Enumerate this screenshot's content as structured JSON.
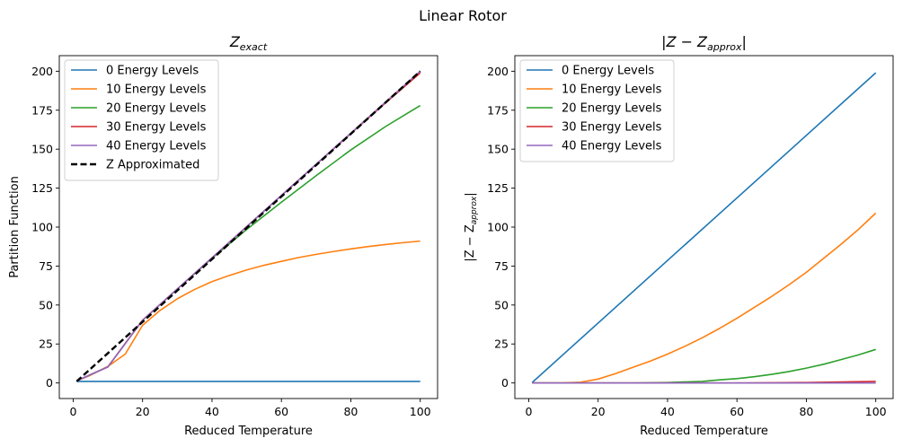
{
  "suptitle": "Linear Rotor",
  "chart_data": [
    {
      "type": "line",
      "title": "Z_exact",
      "title_main": "Z",
      "title_sub": "exact",
      "xlabel": "Reduced Temperature",
      "ylabel": "Partition Function",
      "xlim": [
        -4,
        105
      ],
      "ylim": [
        -10,
        210
      ],
      "xticks": [
        0,
        20,
        40,
        60,
        80,
        100
      ],
      "yticks": [
        0,
        25,
        50,
        75,
        100,
        125,
        150,
        175,
        200
      ],
      "grid": false,
      "legend_position": "upper left",
      "series": [
        {
          "name": "0 Energy Levels",
          "color": "#1f77b4",
          "dashed": false,
          "x": [
            1,
            10,
            20,
            30,
            40,
            50,
            60,
            70,
            80,
            90,
            100
          ],
          "y": [
            1,
            1,
            1,
            1,
            1,
            1,
            1,
            1,
            1,
            1,
            1
          ]
        },
        {
          "name": "10 Energy Levels",
          "color": "#ff7f0e",
          "dashed": false,
          "x": [
            1,
            5,
            10,
            15,
            20,
            25,
            30,
            35,
            40,
            45,
            50,
            55,
            60,
            65,
            70,
            75,
            80,
            85,
            90,
            95,
            100
          ],
          "y": [
            1.3,
            5,
            10.6,
            18.5,
            37.0,
            46.5,
            54.0,
            60.0,
            65.0,
            69.0,
            72.5,
            75.5,
            78.0,
            80.5,
            82.5,
            84.3,
            86.0,
            87.5,
            88.8,
            90.0,
            91.0
          ]
        },
        {
          "name": "20 Energy Levels",
          "color": "#2ca02c",
          "dashed": false,
          "x": [
            1,
            10,
            20,
            30,
            40,
            50,
            60,
            70,
            80,
            90,
            100
          ],
          "y": [
            1.3,
            10.3,
            40.3,
            60.3,
            80.0,
            98.5,
            116.0,
            133.0,
            149.5,
            164.5,
            178.0
          ]
        },
        {
          "name": "30 Energy Levels",
          "color": "#d62728",
          "dashed": false,
          "x": [
            1,
            10,
            20,
            30,
            40,
            50,
            60,
            70,
            80,
            90,
            100
          ],
          "y": [
            1.3,
            10.3,
            40.3,
            60.3,
            80.3,
            100.3,
            120.3,
            140.2,
            160.0,
            179.7,
            198.9
          ]
        },
        {
          "name": "40 Energy Levels",
          "color": "#9467bd",
          "dashed": false,
          "x": [
            1,
            10,
            20,
            30,
            40,
            50,
            60,
            70,
            80,
            90,
            100
          ],
          "y": [
            1.3,
            10.3,
            40.3,
            60.3,
            80.3,
            100.3,
            120.3,
            140.3,
            160.3,
            180.2,
            200.0
          ]
        },
        {
          "name": "Z Approximated",
          "color": "#000000",
          "dashed": true,
          "x": [
            1,
            100
          ],
          "y": [
            1.0,
            200.0
          ]
        }
      ]
    },
    {
      "type": "line",
      "title": "|Z - Z_approx|",
      "title_main": "|Z − Z",
      "title_sub": "approx",
      "title_end": "|",
      "xlabel": "Reduced Temperature",
      "ylabel": "|Z − Z_approx|",
      "ylabel_main": "|Z − Z",
      "ylabel_sub": "approx",
      "ylabel_end": "|",
      "xlim": [
        -4,
        105
      ],
      "ylim": [
        -10,
        210
      ],
      "xticks": [
        0,
        20,
        40,
        60,
        80,
        100
      ],
      "yticks": [
        0,
        25,
        50,
        75,
        100,
        125,
        150,
        175,
        200
      ],
      "grid": false,
      "legend_position": "upper left",
      "series": [
        {
          "name": "0 Energy Levels",
          "color": "#1f77b4",
          "dashed": false,
          "x": [
            1,
            100
          ],
          "y": [
            0.3,
            199.0
          ]
        },
        {
          "name": "10 Energy Levels",
          "color": "#ff7f0e",
          "dashed": false,
          "x": [
            1,
            10,
            15,
            20,
            25,
            30,
            35,
            40,
            45,
            50,
            55,
            60,
            65,
            70,
            75,
            80,
            85,
            90,
            95,
            100
          ],
          "y": [
            0,
            0,
            0.5,
            2.5,
            6.0,
            10.0,
            14.0,
            18.5,
            23.5,
            29.0,
            35.0,
            41.5,
            48.5,
            55.5,
            63.0,
            71.0,
            80.0,
            89.0,
            98.5,
            109.0
          ]
        },
        {
          "name": "20 Energy Levels",
          "color": "#2ca02c",
          "dashed": false,
          "x": [
            1,
            30,
            40,
            50,
            55,
            60,
            65,
            70,
            75,
            80,
            85,
            90,
            95,
            100
          ],
          "y": [
            0,
            0,
            0.3,
            1.0,
            2.0,
            2.8,
            4.0,
            5.5,
            7.3,
            9.5,
            12.0,
            15.0,
            18.0,
            21.5
          ]
        },
        {
          "name": "30 Energy Levels",
          "color": "#d62728",
          "dashed": false,
          "x": [
            1,
            60,
            70,
            80,
            90,
            100
          ],
          "y": [
            0,
            0,
            0.1,
            0.3,
            0.6,
            1.0
          ]
        },
        {
          "name": "40 Energy Levels",
          "color": "#9467bd",
          "dashed": false,
          "x": [
            1,
            100
          ],
          "y": [
            0,
            0
          ]
        }
      ]
    }
  ]
}
